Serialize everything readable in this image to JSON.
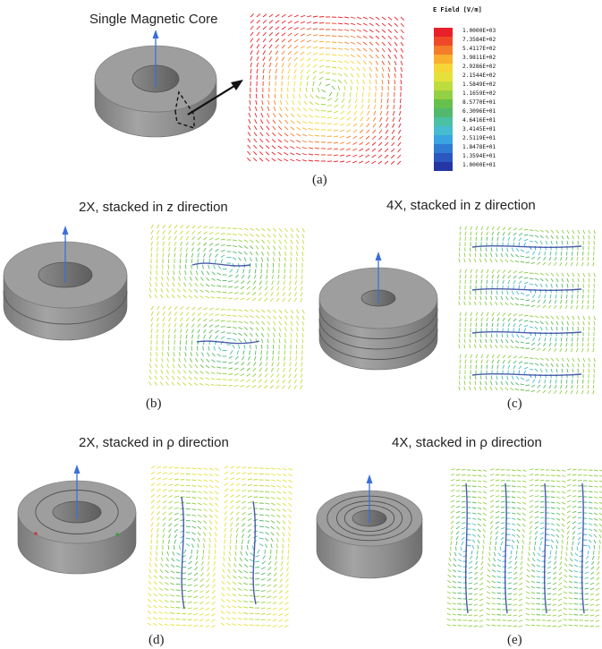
{
  "panels": {
    "a": {
      "title": "Single Magnetic Core",
      "caption": "(a)"
    },
    "b": {
      "title": "2X, stacked in z direction",
      "caption": "(b)"
    },
    "c": {
      "title": "4X, stacked in z direction",
      "caption": "(c)"
    },
    "d": {
      "title": "2X, stacked in ρ direction",
      "caption": "(d)"
    },
    "e": {
      "title": "4X, stacked in ρ direction",
      "caption": "(e)"
    }
  },
  "legend": {
    "title": "E Field [V/m]",
    "entries": [
      {
        "value": "1.0000E+03",
        "color": "#e8202a"
      },
      {
        "value": "7.3584E+02",
        "color": "#ef4a28"
      },
      {
        "value": "5.4117E+02",
        "color": "#f47c2a"
      },
      {
        "value": "3.9811E+02",
        "color": "#f8b02e"
      },
      {
        "value": "2.9286E+02",
        "color": "#f6d636"
      },
      {
        "value": "2.1544E+02",
        "color": "#e4e23a"
      },
      {
        "value": "1.5849E+02",
        "color": "#bfdc3e"
      },
      {
        "value": "1.1659E+02",
        "color": "#94d044"
      },
      {
        "value": "8.5770E+01",
        "color": "#66c04c"
      },
      {
        "value": "6.3096E+01",
        "color": "#52b86e"
      },
      {
        "value": "4.6416E+01",
        "color": "#4cc0a2"
      },
      {
        "value": "3.4145E+01",
        "color": "#46bcd0"
      },
      {
        "value": "2.5119E+01",
        "color": "#3aa4e0"
      },
      {
        "value": "1.8478E+01",
        "color": "#2f7cd2"
      },
      {
        "value": "1.3594E+01",
        "color": "#2a58c0"
      },
      {
        "value": "1.0000E+01",
        "color": "#2436a4"
      }
    ]
  }
}
